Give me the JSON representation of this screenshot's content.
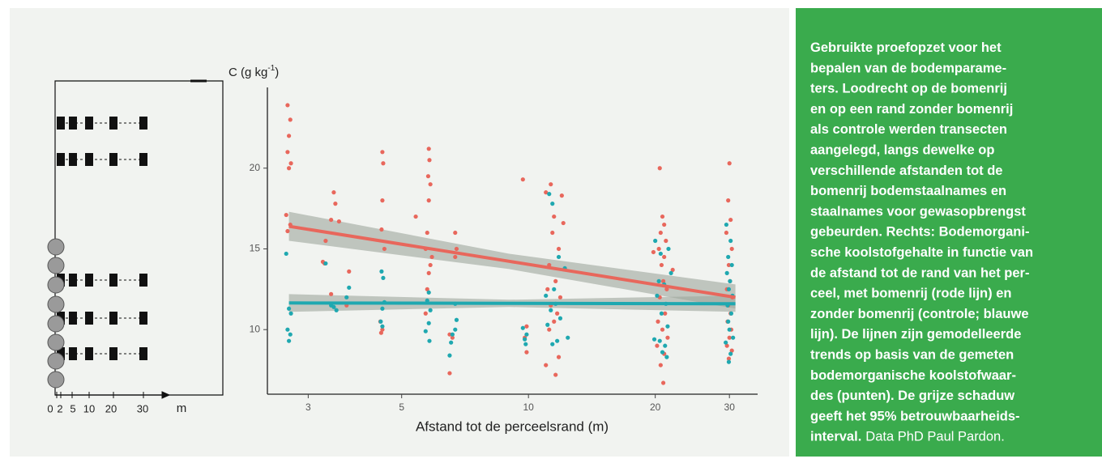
{
  "chart_data": {
    "type": "scatter",
    "ylabel": {
      "base": "C (g kg",
      "superscript": "-1",
      "close": ")"
    },
    "xlabel": "Afstand tot de perceelsrand (m)",
    "xscale": "log",
    "xlim": [
      2.4,
      35
    ],
    "xticks": [
      3,
      5,
      10,
      20,
      30
    ],
    "ylim": [
      6,
      25
    ],
    "yticks": [
      10,
      15,
      20
    ],
    "series": [
      {
        "color": "#e8675c",
        "x": [
          2.68,
          2.72,
          2.7,
          2.68,
          2.73,
          2.7,
          2.66,
          2.72,
          2.68,
          3.3,
          3.45,
          3.48,
          3.4,
          3.55,
          3.25,
          3.28,
          3.75,
          3.4,
          3.7,
          4.5,
          4.52,
          4.5,
          4.48,
          4.55,
          4.45,
          4.5,
          4.47,
          5.8,
          5.82,
          5.78,
          5.85,
          5.8,
          5.4,
          5.75,
          5.7,
          5.9,
          5.85,
          5.8,
          5.75,
          5.7,
          6.7,
          6.75,
          6.7,
          6.5,
          6.6,
          6.5,
          9.7,
          9.9,
          9.8,
          9.9,
          11.3,
          11,
          12,
          11.5,
          12.1,
          11.4,
          11.8,
          11.2,
          11.6,
          11.1,
          11.9,
          11.3,
          11.7,
          11.5,
          11.2,
          11.8,
          11,
          11.6,
          20.5,
          20.8,
          21,
          20.6,
          21.2,
          20.4,
          19.8,
          21,
          20.7,
          22,
          20.9,
          21.3,
          20.5,
          21.1,
          20.3,
          20.8,
          21.4,
          20.2,
          21,
          20.6,
          20.9,
          30,
          29.8,
          30.2,
          29.5,
          30.4,
          29.9,
          30.1,
          29.6,
          30.5,
          29.8,
          30.2,
          29.7,
          30.3,
          30,
          29.6,
          30.4,
          29.9
        ],
        "values": [
          23.9,
          23,
          22,
          21,
          20.3,
          20,
          17.1,
          16.5,
          16.1,
          15.5,
          18.5,
          17.8,
          16.8,
          16.7,
          14.2,
          14.1,
          13.6,
          12.2,
          11.5,
          21,
          20.3,
          18,
          16.2,
          15,
          10.5,
          10,
          9.8,
          21.2,
          20.5,
          19.5,
          19,
          18,
          17,
          16,
          15,
          14.5,
          14,
          13.5,
          12.5,
          11,
          16,
          15,
          14.5,
          9.7,
          9.5,
          7.3,
          19.3,
          10.2,
          9.5,
          8.6,
          19,
          18.5,
          18.3,
          17,
          16.6,
          16,
          15,
          14,
          13,
          12.5,
          12,
          11.5,
          11,
          10.5,
          10,
          8.3,
          7.8,
          7.2,
          20,
          17,
          16.5,
          16,
          15.5,
          15,
          14.8,
          14.5,
          14,
          13.7,
          13,
          12.5,
          12,
          11,
          10.5,
          10,
          9.5,
          9,
          8.5,
          7.8,
          6.7,
          20.3,
          18,
          16.8,
          16,
          15,
          14,
          13,
          12.5,
          12,
          11.5,
          11,
          10.5,
          10,
          9.5,
          9,
          8.7,
          8.2
        ]
      },
      {
        "color": "#1fa8b0",
        "x": [
          2.66,
          2.7,
          2.73,
          2.68,
          2.72,
          2.7,
          3.3,
          3.45,
          3.5,
          3.75,
          3.7,
          3.4,
          4.48,
          4.52,
          4.5,
          4.46,
          4.5,
          4.55,
          5.8,
          5.75,
          5.85,
          5.8,
          5.7,
          5.82,
          6.7,
          6.75,
          6.7,
          6.6,
          6.55,
          6.5,
          9.7,
          9.9,
          9.8,
          9.85,
          11.2,
          11.4,
          11.8,
          12.2,
          11.5,
          11,
          11.6,
          11.3,
          11.9,
          11.1,
          12.4,
          11.7,
          11.4,
          20,
          21.5,
          20.6,
          21.8,
          20.4,
          21,
          20.2,
          21.2,
          20.7,
          21.4,
          19.9,
          20.5,
          21.1,
          20.8,
          21.3,
          29.5,
          30.2,
          29.8,
          30.4,
          29.6,
          30.1,
          29.9,
          30.5,
          29.7,
          30.3,
          29.8,
          30,
          30.6,
          29.4,
          30.2,
          29.9
        ],
        "values": [
          14.7,
          11.3,
          11,
          10,
          9.7,
          9.3,
          14.1,
          11.4,
          11.2,
          12.6,
          12,
          11.5,
          13.6,
          13.2,
          11.3,
          10.5,
          10.2,
          11.7,
          12.3,
          11.8,
          11.2,
          10.4,
          9.9,
          9.3,
          11.6,
          10.6,
          10,
          9.7,
          9.2,
          8.4,
          10.1,
          9.7,
          9.4,
          9.1,
          18.4,
          17.8,
          14.5,
          13.8,
          12.5,
          12.1,
          11.6,
          11.2,
          10.7,
          10.3,
          9.5,
          9.3,
          9.1,
          15.5,
          15,
          14.7,
          13.5,
          13,
          12.8,
          12.1,
          11.6,
          11,
          10.2,
          9.4,
          9.3,
          9,
          8.6,
          8.3,
          16.5,
          15.5,
          14.5,
          14,
          13.5,
          13,
          12.5,
          12.1,
          11.5,
          11,
          10.5,
          10,
          9.5,
          9.2,
          8.5,
          8
        ]
      }
    ],
    "trends": [
      {
        "color": "#e8675c",
        "x": [
          2.7,
          9,
          31
        ],
        "values": [
          16.4,
          14.23,
          12
        ],
        "lower": [
          15.5,
          13.75,
          11.3
        ],
        "upper": [
          17.3,
          14.7,
          12.8
        ]
      },
      {
        "color": "#1fa8b0",
        "x": [
          2.7,
          9,
          31
        ],
        "values": [
          11.65,
          11.63,
          11.6
        ],
        "lower": [
          11.1,
          11.4,
          11.1
        ],
        "upper": [
          12.2,
          11.85,
          12.1
        ]
      }
    ],
    "band_color": "#9ea69d"
  },
  "schematic": {
    "axis_labels": [
      "0",
      "2",
      "5",
      "10",
      "20",
      "30"
    ],
    "unit": "m"
  },
  "caption": {
    "lines": [
      "Gebruikte proefopzet voor het",
      "bepalen van de bodemparame-",
      "ters. Loodrecht op de bomenrij",
      "en op een rand zonder bomenrij",
      "als controle werden transecten",
      "aangelegd, langs dewelke op",
      "verschillende afstanden tot de",
      "bomenrij bodemstaalnames en",
      "staalnames voor gewasopbrengst",
      "gebeurden. Rechts: Bodemorgani-",
      "sche koolstofgehalte in functie van",
      "de afstand tot de rand van het per-",
      "ceel, met bomenrij (rode lijn) en",
      "zonder bomenrij (controle; blauwe",
      "lijn). De lijnen zijn gemodelleerde",
      "trends op basis van de gemeten",
      "bodemorganische koolstofwaar-",
      "des (punten). De grijze schaduw",
      "geeft het 95% betrouwbaarheids-",
      "interval."
    ],
    "credit": "Data PhD Paul Pardon."
  }
}
